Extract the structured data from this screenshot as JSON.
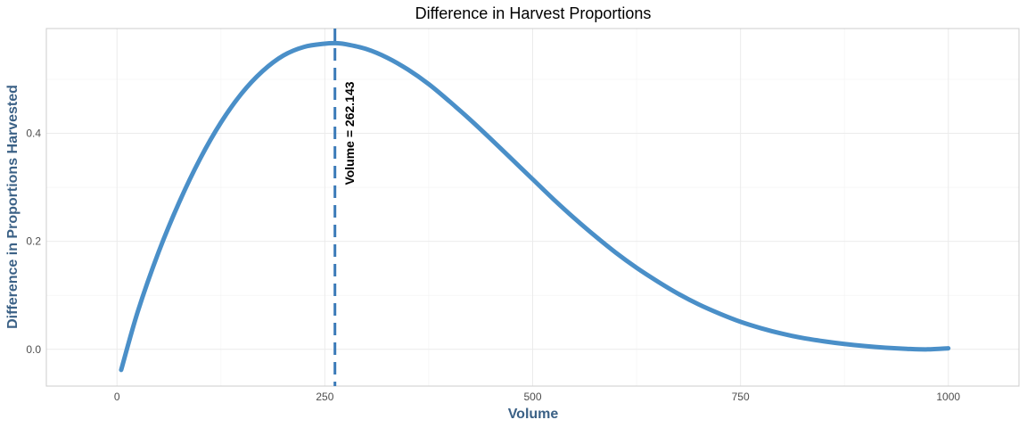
{
  "chart_data": {
    "type": "line",
    "title": "Difference in Harvest Proportions",
    "xlabel": "Volume",
    "ylabel": "Difference in Proportions Harvested",
    "xlim": [
      -85,
      1085
    ],
    "ylim": [
      -0.068,
      0.594
    ],
    "x_ticks": [
      0,
      250,
      500,
      750,
      1000
    ],
    "x_tick_labels": [
      "0",
      "250",
      "500",
      "750",
      "1000"
    ],
    "y_ticks": [
      0.0,
      0.2,
      0.4
    ],
    "y_tick_labels": [
      "0.0",
      "0.2",
      "0.4"
    ],
    "grid": true,
    "series": [
      {
        "color": "#4a8fc8",
        "x": [
          5,
          25,
          50,
          75,
          100,
          125,
          150,
          175,
          200,
          225,
          250,
          262.143,
          275,
          300,
          325,
          350,
          375,
          400,
          425,
          450,
          475,
          500,
          525,
          550,
          575,
          600,
          625,
          650,
          675,
          700,
          725,
          750,
          775,
          800,
          825,
          850,
          875,
          900,
          925,
          950,
          975,
          1000
        ],
        "y": [
          -0.038,
          0.07,
          0.18,
          0.273,
          0.353,
          0.42,
          0.474,
          0.515,
          0.544,
          0.56,
          0.566,
          0.567,
          0.565,
          0.556,
          0.54,
          0.518,
          0.491,
          0.459,
          0.425,
          0.389,
          0.352,
          0.315,
          0.278,
          0.243,
          0.21,
          0.179,
          0.151,
          0.126,
          0.103,
          0.083,
          0.066,
          0.051,
          0.039,
          0.029,
          0.021,
          0.015,
          0.01,
          0.006,
          0.003,
          0.001,
          0.0,
          0.002
        ]
      }
    ],
    "vline": {
      "x": 262.143,
      "color": "#3a7ab8",
      "style": "dashed"
    },
    "annotation": {
      "text": "Volume =  262.143",
      "x": 285,
      "y": 0.4,
      "rotation": -90
    },
    "axis_title_color": "#3b6186"
  }
}
